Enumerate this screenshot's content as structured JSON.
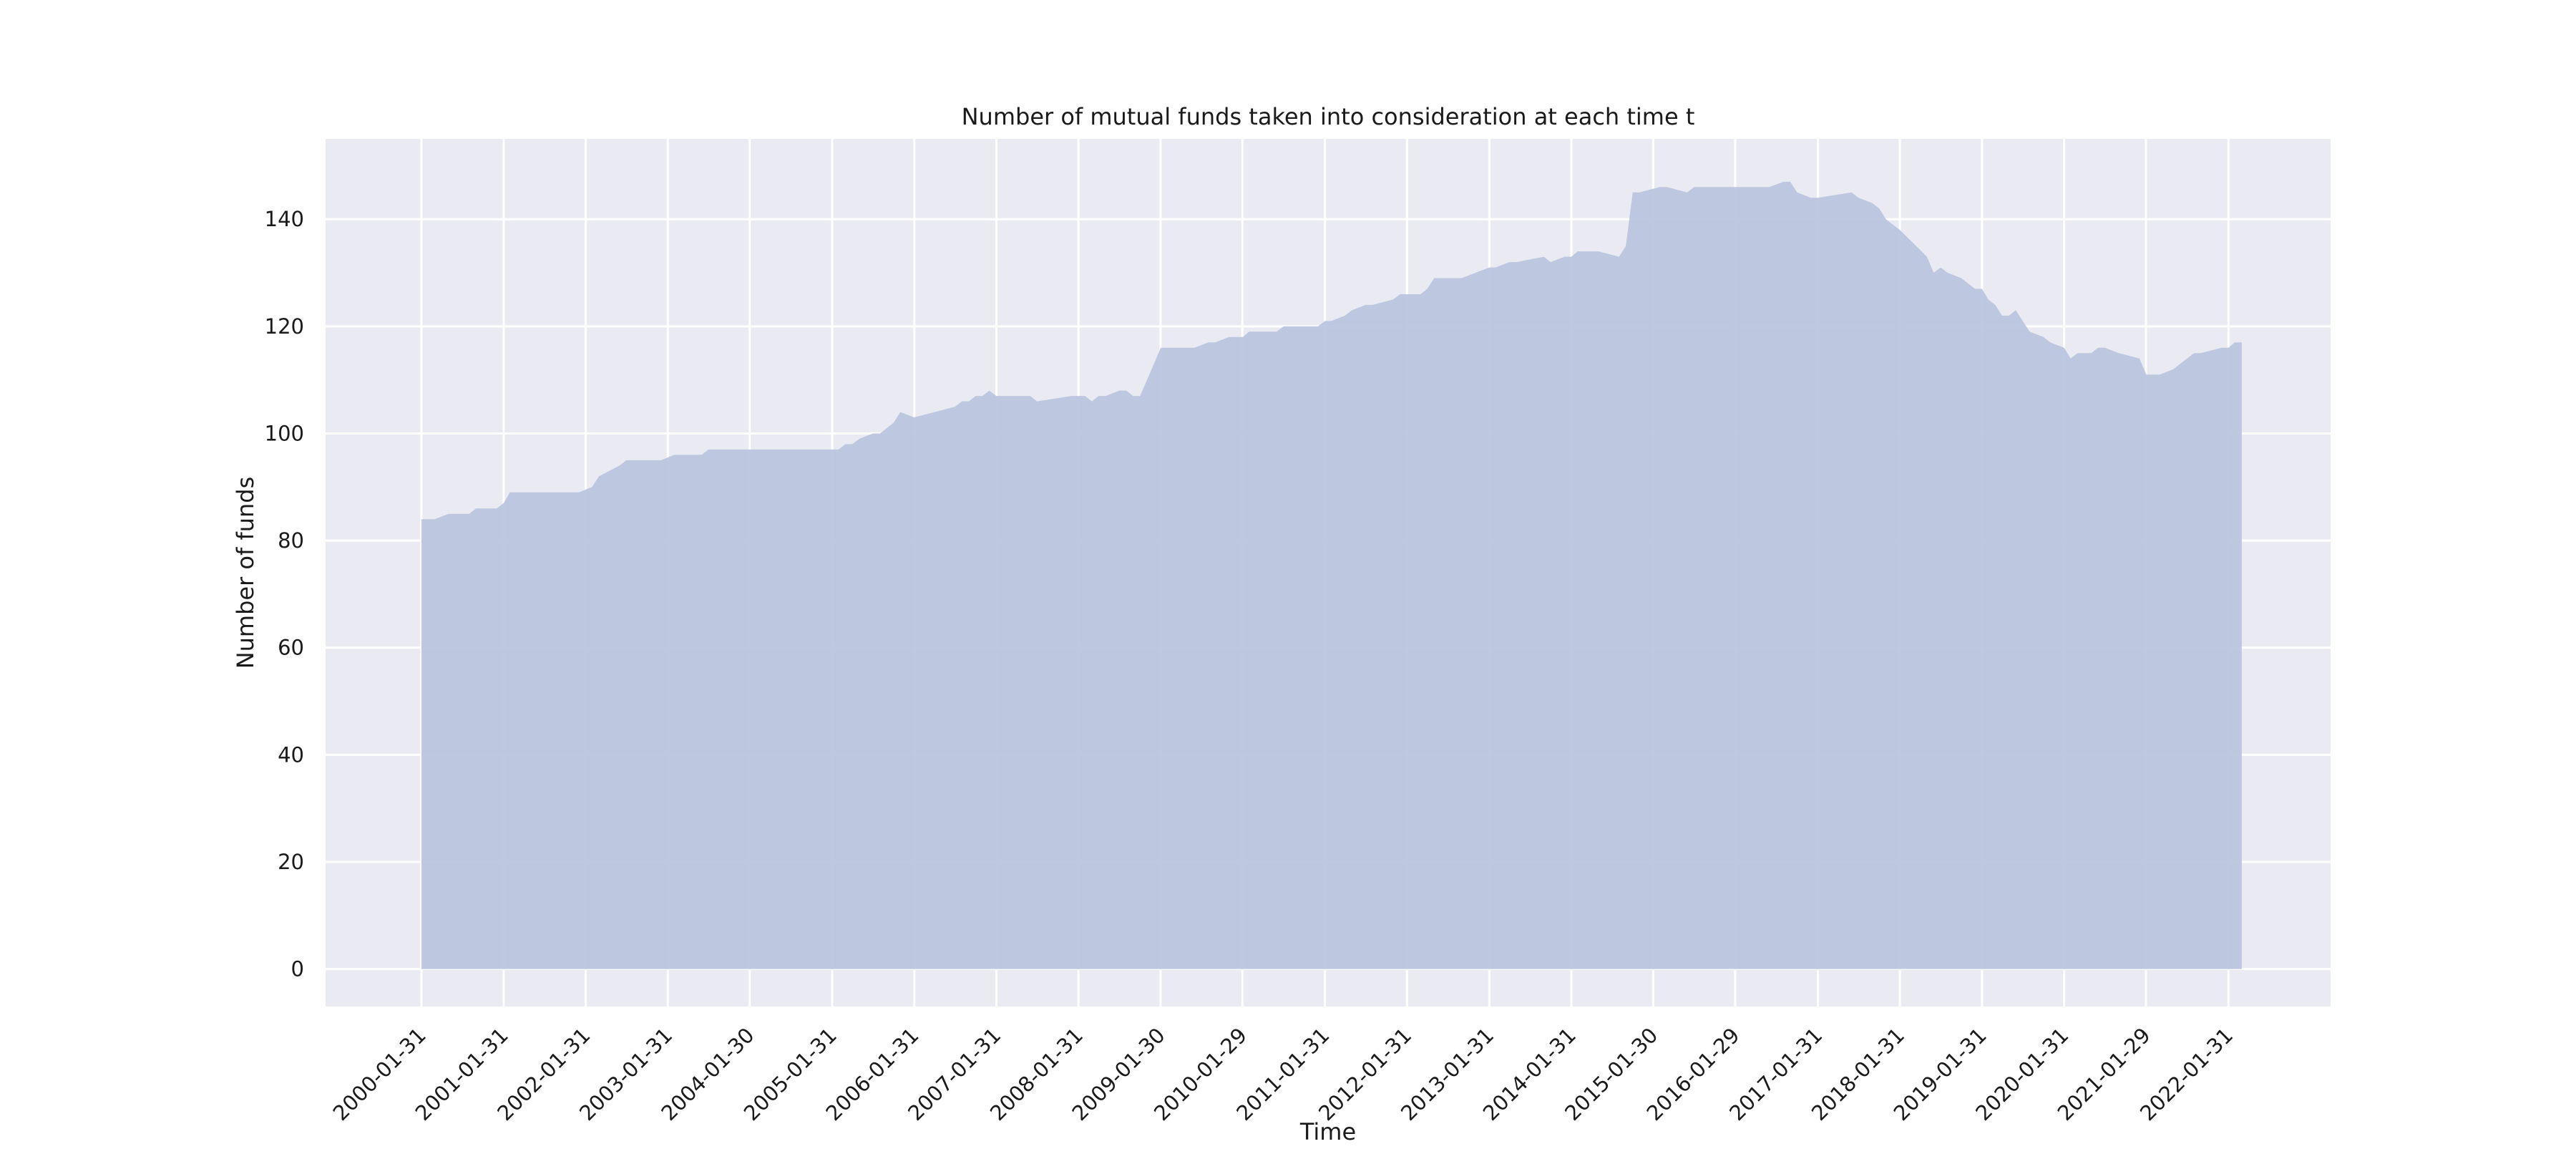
{
  "chart_data": {
    "type": "area",
    "title": "Number of mutual funds taken into consideration at each time t",
    "xlabel": "Time",
    "ylabel": "Number of funds",
    "ylim": [
      -7,
      155
    ],
    "yticks": [
      0,
      20,
      40,
      60,
      80,
      100,
      120,
      140
    ],
    "xticks": [
      "2000-01-31",
      "2001-01-31",
      "2002-01-31",
      "2003-01-31",
      "2004-01-30",
      "2005-01-31",
      "2006-01-31",
      "2007-01-31",
      "2008-01-31",
      "2009-01-30",
      "2010-01-29",
      "2011-01-31",
      "2012-01-31",
      "2013-01-31",
      "2014-01-31",
      "2015-01-30",
      "2016-01-29",
      "2017-01-31",
      "2018-01-31",
      "2019-01-31",
      "2020-01-31",
      "2021-01-29",
      "2022-01-31"
    ],
    "xlim": [
      "1998-12-01",
      "2023-04-30"
    ],
    "grid": true,
    "colors": {
      "plot_background": "#eaeaf2",
      "grid": "#ffffff",
      "fill": "#b8c4de"
    },
    "series": [
      {
        "x": [
          "2000-01-31",
          "2000-03-31",
          "2000-05-31",
          "2000-08-31",
          "2000-09-30",
          "2000-12-31",
          "2001-01-31",
          "2001-02-28",
          "2001-12-31",
          "2002-02-28",
          "2002-03-31",
          "2002-06-30",
          "2002-07-31",
          "2002-12-31",
          "2003-02-28",
          "2003-06-30",
          "2003-07-31",
          "2003-12-31",
          "2004-02-29",
          "2005-02-28",
          "2005-03-31",
          "2005-04-30",
          "2005-05-31",
          "2005-07-31",
          "2005-08-31",
          "2005-10-31",
          "2005-11-30",
          "2006-01-31",
          "2006-07-31",
          "2006-08-31",
          "2006-09-30",
          "2006-10-31",
          "2006-11-30",
          "2006-12-31",
          "2007-01-31",
          "2007-06-30",
          "2007-07-31",
          "2007-12-31",
          "2008-02-29",
          "2008-03-31",
          "2008-04-30",
          "2008-05-31",
          "2008-07-31",
          "2008-08-31",
          "2008-09-30",
          "2008-10-31",
          "2009-01-31",
          "2009-06-30",
          "2009-08-31",
          "2009-09-30",
          "2009-11-30",
          "2010-01-31",
          "2010-02-28",
          "2010-06-30",
          "2010-07-31",
          "2010-12-31",
          "2011-01-31",
          "2011-02-28",
          "2011-04-30",
          "2011-05-31",
          "2011-07-31",
          "2011-08-31",
          "2011-11-30",
          "2011-12-31",
          "2012-03-31",
          "2012-04-30",
          "2012-05-31",
          "2012-09-30",
          "2013-01-31",
          "2013-02-28",
          "2013-04-30",
          "2013-05-31",
          "2013-09-30",
          "2013-10-31",
          "2013-12-31",
          "2014-01-31",
          "2014-02-28",
          "2014-03-31",
          "2014-05-31",
          "2014-08-31",
          "2014-09-30",
          "2014-10-31",
          "2014-11-30",
          "2015-02-28",
          "2015-03-31",
          "2015-06-30",
          "2015-07-31",
          "2015-08-31",
          "2016-05-31",
          "2016-06-30",
          "2016-08-31",
          "2016-09-30",
          "2016-10-31",
          "2016-12-31",
          "2017-01-31",
          "2017-06-30",
          "2017-07-31",
          "2017-09-30",
          "2017-10-31",
          "2017-11-30",
          "2017-12-31",
          "2018-01-31",
          "2018-05-31",
          "2018-06-30",
          "2018-07-31",
          "2018-08-31",
          "2018-10-31",
          "2018-11-30",
          "2018-12-31",
          "2019-01-31",
          "2019-02-28",
          "2019-03-31",
          "2019-04-30",
          "2019-05-31",
          "2019-06-30",
          "2019-07-31",
          "2019-08-31",
          "2019-10-31",
          "2019-11-30",
          "2020-01-31",
          "2020-02-29",
          "2020-03-31",
          "2020-05-31",
          "2020-06-30",
          "2020-07-31",
          "2020-09-30",
          "2020-12-31",
          "2021-01-31",
          "2021-02-28",
          "2021-03-31",
          "2021-05-31",
          "2021-06-30",
          "2021-07-31",
          "2021-08-31",
          "2021-09-30",
          "2021-12-31",
          "2022-01-31",
          "2022-02-28",
          "2022-03-31"
        ],
        "values": [
          84,
          84,
          85,
          85,
          86,
          86,
          87,
          89,
          89,
          90,
          92,
          94,
          95,
          95,
          96,
          96,
          97,
          97,
          97,
          97,
          98,
          98,
          99,
          100,
          100,
          102,
          104,
          103,
          105,
          106,
          106,
          107,
          107,
          108,
          107,
          107,
          106,
          107,
          107,
          106,
          107,
          107,
          108,
          108,
          107,
          107,
          116,
          116,
          117,
          117,
          118,
          118,
          119,
          119,
          120,
          120,
          121,
          121,
          122,
          123,
          124,
          124,
          125,
          126,
          126,
          127,
          129,
          129,
          131,
          131,
          132,
          132,
          133,
          132,
          133,
          133,
          134,
          134,
          134,
          133,
          135,
          145,
          145,
          146,
          146,
          145,
          146,
          146,
          146,
          146,
          147,
          147,
          145,
          144,
          144,
          145,
          144,
          143,
          142,
          140,
          139,
          138,
          133,
          130,
          131,
          130,
          129,
          128,
          127,
          127,
          125,
          124,
          122,
          122,
          123,
          121,
          119,
          118,
          117,
          116,
          114,
          115,
          115,
          116,
          116,
          115,
          114,
          111,
          111,
          111,
          112,
          113,
          114,
          115,
          115,
          116,
          116,
          117,
          117
        ]
      }
    ]
  }
}
